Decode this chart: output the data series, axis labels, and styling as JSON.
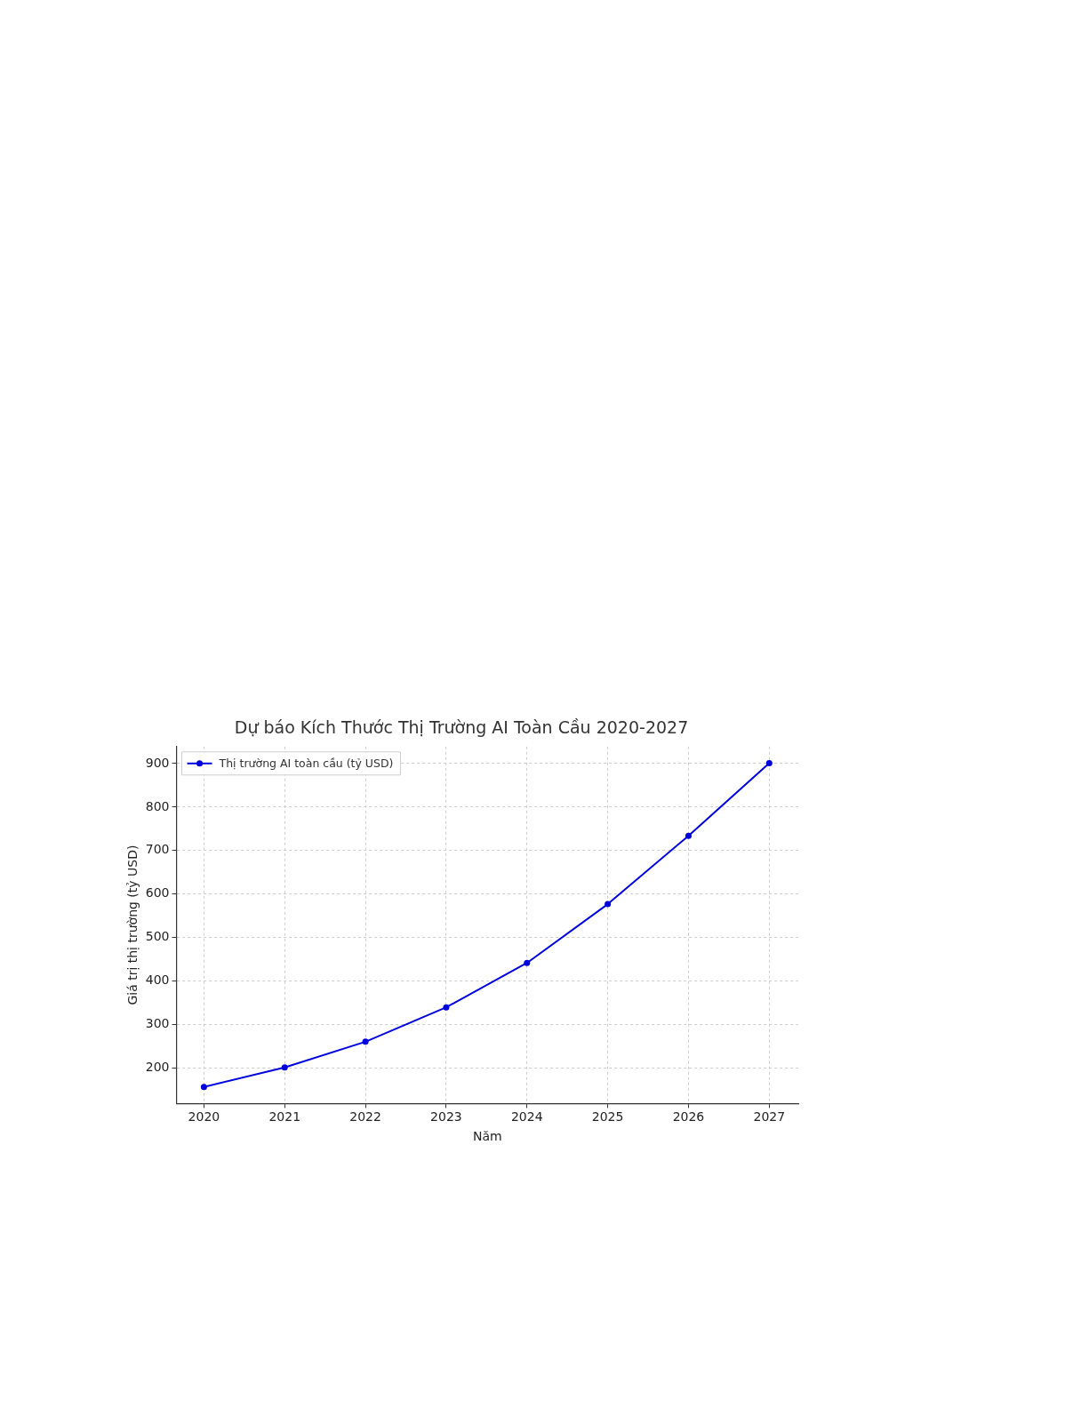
{
  "chart_data": {
    "type": "line",
    "title": "Dự báo Kích Thước Thị Trường AI Toàn Cầu 2020-2027",
    "xlabel": "Năm",
    "ylabel": "Giá trị thị trường (tỷ USD)",
    "x": [
      2020,
      2021,
      2022,
      2023,
      2024,
      2025,
      2026,
      2027
    ],
    "series": [
      {
        "name": "Thị trường AI toàn cầu (tỷ USD)",
        "color": "#0000dd",
        "values": [
          157,
          202,
          261,
          340,
          442,
          577,
          734,
          901
        ]
      }
    ],
    "xlim": [
      2019.66,
      2027.36
    ],
    "xticks": [
      2020,
      2021,
      2022,
      2023,
      2024,
      2025,
      2026,
      2027
    ],
    "ylim": [
      119,
      939
    ],
    "yticks": [
      200,
      300,
      400,
      500,
      600,
      700,
      800,
      900
    ],
    "grid": true,
    "legend": "top left",
    "marker": "circle",
    "line_style": "solid"
  }
}
